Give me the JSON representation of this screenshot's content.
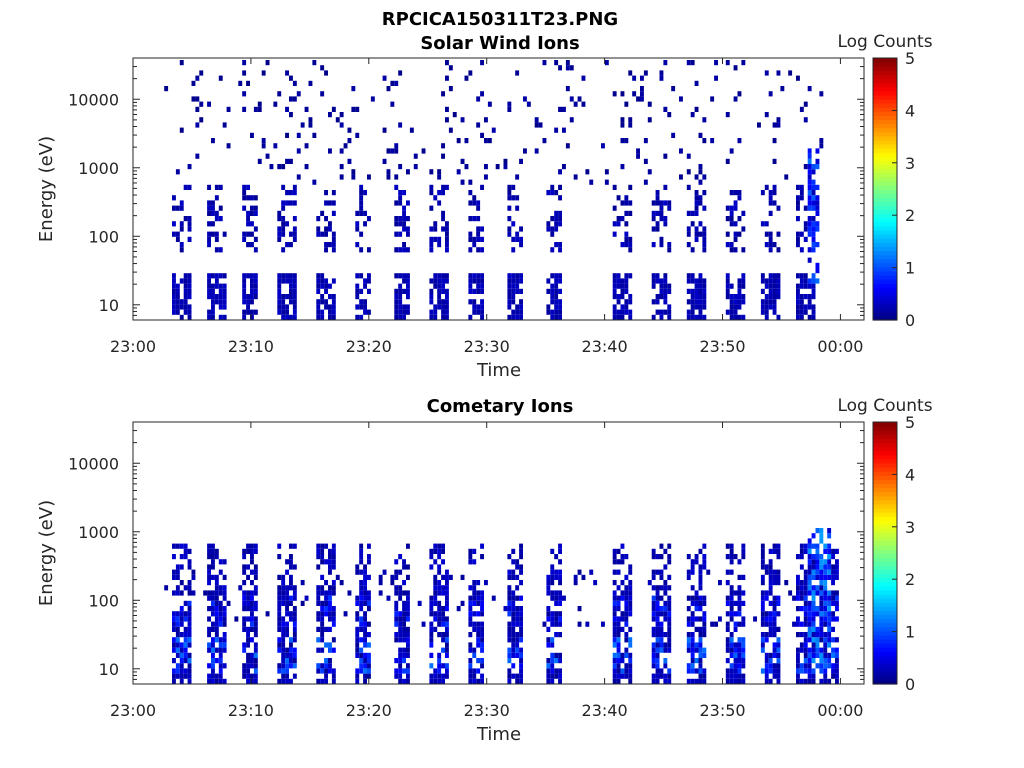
{
  "figure": {
    "title": "RPCICA150311T23.PNG"
  },
  "panels": [
    {
      "title": "Solar Wind Ions",
      "xlabel": "Time",
      "ylabel": "Energy (eV)",
      "colorbar_label": "Log Counts"
    },
    {
      "title": "Cometary Ions",
      "xlabel": "Time",
      "ylabel": "Energy (eV)",
      "colorbar_label": "Log Counts"
    }
  ],
  "chart_data": [
    {
      "type": "heatmap",
      "title": "Solar Wind Ions",
      "xlabel": "Time",
      "ylabel": "Energy (eV)",
      "x_ticks": [
        "23:00",
        "23:10",
        "23:20",
        "23:30",
        "23:40",
        "23:50",
        "00:00"
      ],
      "x_range_minutes": [
        0,
        62
      ],
      "y_scale": "log",
      "y_ticks": [
        10,
        100,
        1000,
        10000
      ],
      "y_range": [
        6,
        40000
      ],
      "colorbar": {
        "label": "Log Counts",
        "range": [
          0,
          5
        ],
        "ticks": [
          0,
          1,
          2,
          3,
          4,
          5
        ],
        "colormap": "jet"
      },
      "sweep_start_minutes": [
        3.6,
        6.5,
        9.3,
        12.6,
        15.8,
        19.0,
        22.2,
        25.4,
        28.5,
        31.8,
        35.1,
        41.0,
        44.3,
        47.3,
        50.5,
        53.6,
        56.5
      ],
      "low_energy_band_eV": [
        6,
        28
      ],
      "high_energy_level": "0 to 0.6",
      "max_level_at_58min": 1.2
    },
    {
      "type": "heatmap",
      "title": "Cometary Ions",
      "xlabel": "Time",
      "ylabel": "Energy (eV)",
      "x_ticks": [
        "23:00",
        "23:10",
        "23:20",
        "23:30",
        "23:40",
        "23:50",
        "00:00"
      ],
      "x_range_minutes": [
        0,
        62
      ],
      "y_scale": "log",
      "y_ticks": [
        10,
        100,
        1000,
        10000
      ],
      "y_range": [
        6,
        40000
      ],
      "colorbar": {
        "label": "Log Counts",
        "range": [
          0,
          5
        ],
        "ticks": [
          0,
          1,
          2,
          3,
          4,
          5
        ],
        "colormap": "jet"
      },
      "sweep_start_minutes": [
        3.6,
        6.5,
        9.3,
        12.6,
        15.8,
        19.0,
        22.2,
        25.4,
        28.5,
        31.8,
        35.1,
        41.0,
        44.3,
        47.3,
        50.5,
        53.6,
        56.5,
        58.5
      ],
      "peak_energy_band_eV": [
        8,
        120
      ],
      "max_level": 1.4
    }
  ]
}
